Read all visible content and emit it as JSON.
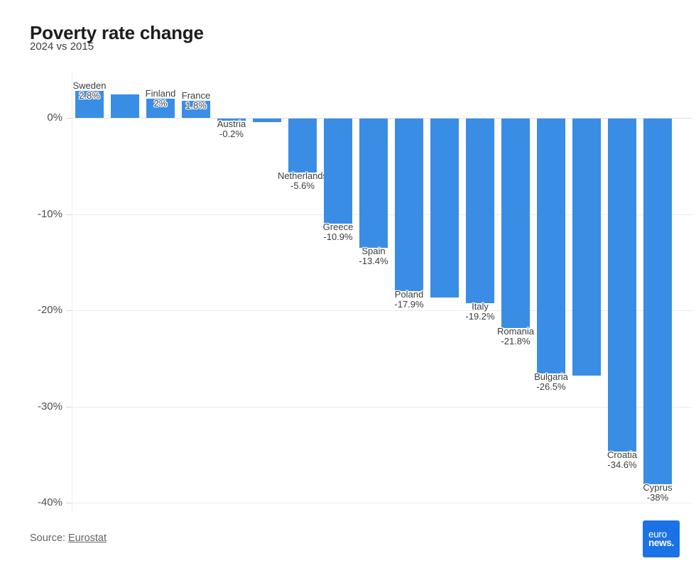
{
  "header": {
    "title": "Poverty rate change",
    "subtitle": "2024 vs 2015"
  },
  "footer": {
    "source_prefix": "Source: ",
    "source_link": "Eurostat",
    "logo_lines": [
      "euro",
      "news."
    ]
  },
  "colors": {
    "bar": "#3a8de4",
    "logo_bg": "#1b72e4",
    "gridline": "#ebebeb",
    "zero_line": "#e0e0e0",
    "axis_text": "#4d4d4d",
    "label_text": "#3d3d3d"
  },
  "chart_data": {
    "type": "bar",
    "title": "Poverty rate change",
    "subtitle": "2024 vs 2015",
    "xlabel": "",
    "ylabel": "",
    "unit": "%",
    "ylim": [
      -41,
      5
    ],
    "grid": true,
    "yticks": [
      {
        "value": 0,
        "label": "0%"
      },
      {
        "value": -10,
        "label": "-10%"
      },
      {
        "value": -20,
        "label": "-20%"
      },
      {
        "value": -30,
        "label": "-30%"
      },
      {
        "value": -40,
        "label": "-40%"
      }
    ],
    "bars": [
      {
        "label": "Sweden",
        "value": 2.8,
        "value_label": "2.8%"
      },
      {
        "label": "",
        "value": 2.4,
        "value_label": ""
      },
      {
        "label": "Finland",
        "value": 2,
        "value_label": "2%"
      },
      {
        "label": "France",
        "value": 1.8,
        "value_label": "1.8%"
      },
      {
        "label": "Austria",
        "value": -0.2,
        "value_label": "-0.2%"
      },
      {
        "label": "",
        "value": -0.4,
        "value_label": ""
      },
      {
        "label": "Netherlands",
        "value": -5.6,
        "value_label": "-5.6%"
      },
      {
        "label": "Greece",
        "value": -10.9,
        "value_label": "-10.9%"
      },
      {
        "label": "Spain",
        "value": -13.4,
        "value_label": "-13.4%"
      },
      {
        "label": "Poland",
        "value": -17.9,
        "value_label": "-17.9%"
      },
      {
        "label": "",
        "value": -18.6,
        "value_label": ""
      },
      {
        "label": "Italy",
        "value": -19.2,
        "value_label": "-19.2%"
      },
      {
        "label": "Romania",
        "value": -21.8,
        "value_label": "-21.8%"
      },
      {
        "label": "Bulgaria",
        "value": -26.5,
        "value_label": "-26.5%"
      },
      {
        "label": "",
        "value": -26.7,
        "value_label": ""
      },
      {
        "label": "Croatia",
        "value": -34.6,
        "value_label": "-34.6%"
      },
      {
        "label": "Cyprus",
        "value": -38,
        "value_label": "-38%"
      }
    ]
  }
}
